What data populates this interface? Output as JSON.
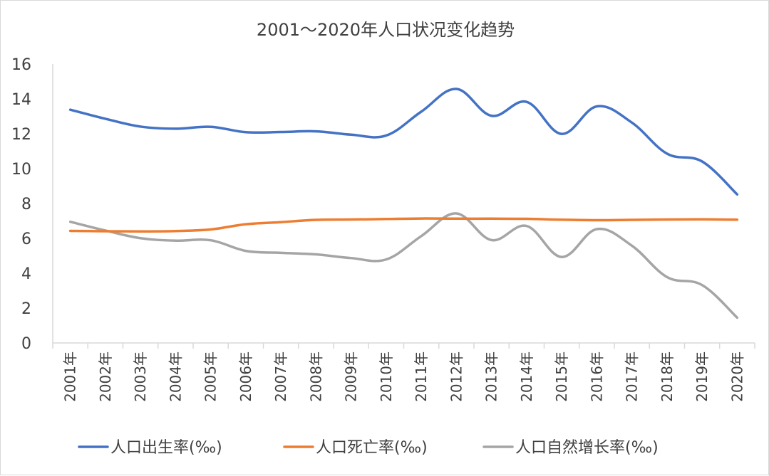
{
  "chart_data": {
    "type": "line",
    "title": "2001～2020年人口状况变化趋势",
    "xlabel": "",
    "ylabel": "",
    "ylim": [
      0,
      16
    ],
    "yticks": [
      0,
      2,
      4,
      6,
      8,
      10,
      12,
      14,
      16
    ],
    "grid": false,
    "legend_position": "bottom",
    "categories": [
      "2001年",
      "2002年",
      "2003年",
      "2004年",
      "2005年",
      "2006年",
      "2007年",
      "2008年",
      "2009年",
      "2010年",
      "2011年",
      "2012年",
      "2013年",
      "2014年",
      "2015年",
      "2016年",
      "2017年",
      "2018年",
      "2019年",
      "2020年"
    ],
    "series": [
      {
        "name": "人口出生率(‰)",
        "color": "#4472C4",
        "values": [
          13.38,
          12.86,
          12.41,
          12.29,
          12.4,
          12.09,
          12.1,
          12.14,
          11.95,
          11.9,
          13.27,
          14.57,
          13.03,
          13.83,
          11.99,
          13.57,
          12.64,
          10.86,
          10.41,
          8.52
        ]
      },
      {
        "name": "人口死亡率(‰)",
        "color": "#ED7D31",
        "values": [
          6.43,
          6.41,
          6.4,
          6.42,
          6.51,
          6.81,
          6.93,
          7.06,
          7.08,
          7.11,
          7.14,
          7.13,
          7.13,
          7.12,
          7.07,
          7.04,
          7.06,
          7.08,
          7.09,
          7.07
        ]
      },
      {
        "name": "人口自然增长率(‰)",
        "color": "#A5A5A5",
        "values": [
          6.95,
          6.45,
          6.01,
          5.87,
          5.89,
          5.28,
          5.17,
          5.08,
          4.87,
          4.79,
          6.13,
          7.43,
          5.9,
          6.71,
          4.93,
          6.53,
          5.58,
          3.78,
          3.32,
          1.45
        ]
      }
    ]
  }
}
